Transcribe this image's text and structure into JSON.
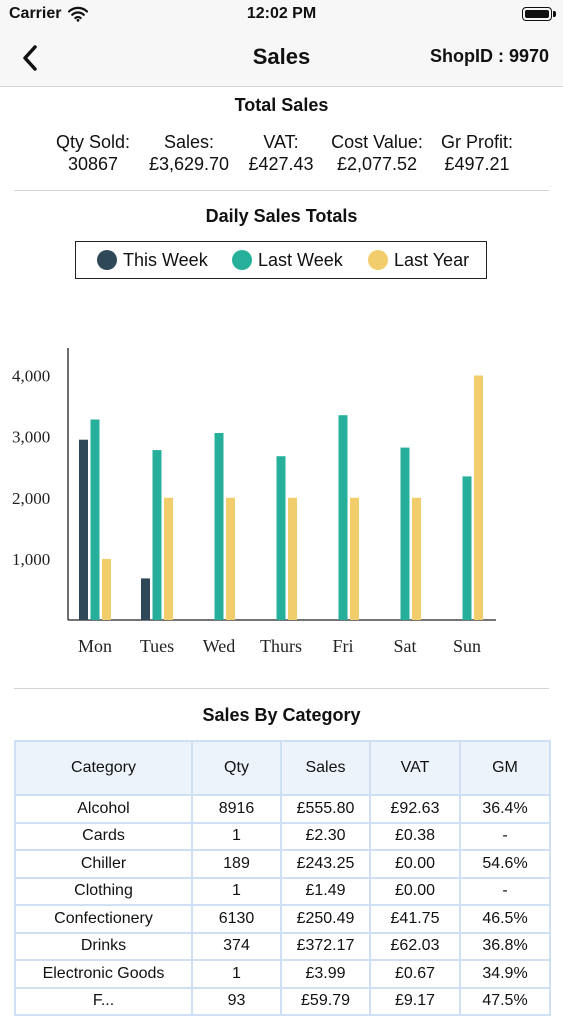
{
  "status_bar": {
    "carrier": "Carrier",
    "time": "12:02 PM"
  },
  "nav": {
    "title": "Sales",
    "shop_id": "ShopID : 9970",
    "back_icon": "chevron-left-icon"
  },
  "total_sales": {
    "title": "Total Sales",
    "items": [
      {
        "label": "Qty Sold:",
        "value": "30867"
      },
      {
        "label": "Sales:",
        "value": "£3,629.70"
      },
      {
        "label": "VAT:",
        "value": "£427.43"
      },
      {
        "label": "Cost Value:",
        "value": "£2,077.52"
      },
      {
        "label": "Gr Profit:",
        "value": "£497.21"
      }
    ]
  },
  "daily_sales": {
    "title": "Daily Sales Totals",
    "legend": [
      {
        "label": "This Week",
        "color": "#2f4858"
      },
      {
        "label": "Last Week",
        "color": "#26b09b"
      },
      {
        "label": "Last Year",
        "color": "#f2cd6b"
      }
    ]
  },
  "chart_data": {
    "type": "bar",
    "categories": [
      "Mon",
      "Tues",
      "Wed",
      "Thurs",
      "Fri",
      "Sat",
      "Sun"
    ],
    "series": [
      {
        "name": "This Week",
        "color": "#2f4858",
        "values": [
          2950,
          680,
          0,
          0,
          0,
          0,
          0
        ]
      },
      {
        "name": "Last Week",
        "color": "#26b09b",
        "values": [
          3280,
          2780,
          3060,
          2680,
          3350,
          2820,
          2350
        ]
      },
      {
        "name": "Last Year",
        "color": "#f2cd6b",
        "values": [
          1000,
          2000,
          2000,
          2000,
          2000,
          2000,
          4000
        ]
      }
    ],
    "yticks": [
      "1,000",
      "2,000",
      "3,000",
      "4,000"
    ],
    "ytick_values": [
      1000,
      2000,
      3000,
      4000
    ],
    "ylim": [
      0,
      4450
    ],
    "grid": false,
    "legend_position": "top"
  },
  "sales_by_category": {
    "title": "Sales By Category",
    "columns": [
      "Category",
      "Qty",
      "Sales",
      "VAT",
      "GM"
    ],
    "rows": [
      [
        "Alcohol",
        "8916",
        "£555.80",
        "£92.63",
        "36.4%"
      ],
      [
        "Cards",
        "1",
        "£2.30",
        "£0.38",
        "-"
      ],
      [
        "Chiller",
        "189",
        "£243.25",
        "£0.00",
        "54.6%"
      ],
      [
        "Clothing",
        "1",
        "£1.49",
        "£0.00",
        "-"
      ],
      [
        "Confectionery",
        "6130",
        "£250.49",
        "£41.75",
        "46.5%"
      ],
      [
        "Drinks",
        "374",
        "£372.17",
        "£62.03",
        "36.8%"
      ],
      [
        "Electronic Goods",
        "1",
        "£3.99",
        "£0.67",
        "34.9%"
      ],
      [
        "F...",
        "93",
        "£59.79",
        "£9.17",
        "47.5%"
      ]
    ]
  }
}
